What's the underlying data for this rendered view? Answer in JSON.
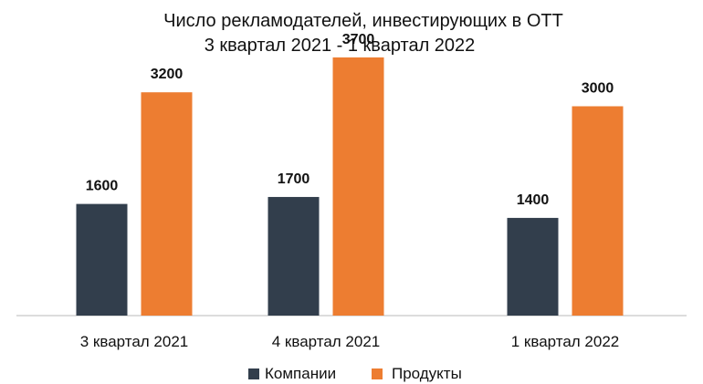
{
  "chart_data": {
    "type": "bar",
    "title_lines": [
      "Число рекламодателей, инвестирующих в ОТТ",
      "3 квартал 2021 - 1 квартал 2022"
    ],
    "categories": [
      "3 квартал 2021",
      "4 квартал 2021",
      "1 квартал 2022"
    ],
    "series": [
      {
        "name": "Компании",
        "values": [
          1600,
          1700,
          1400
        ],
        "color": "#323e4c"
      },
      {
        "name": "Продукты",
        "values": [
          3200,
          3700,
          3000
        ],
        "color": "#ed7d31"
      }
    ],
    "ylim": [
      0,
      4000
    ],
    "grid": false,
    "legend_position": "bottom",
    "data_labels": true,
    "axis_color": "#d0d0d0"
  }
}
